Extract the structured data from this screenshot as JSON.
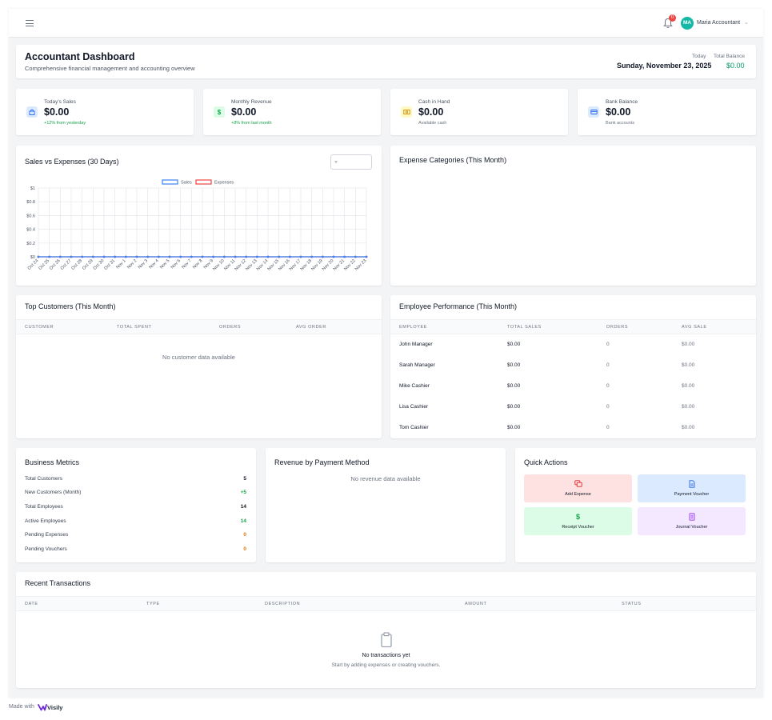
{
  "topbar": {
    "notification_count": "0",
    "avatar_initials": "MA",
    "user_name": "Maria Accountant"
  },
  "header": {
    "title": "Accountant Dashboard",
    "subtitle": "Comprehensive financial management and accounting overview",
    "today_label": "Today",
    "today_date": "Sunday, November 23, 2025",
    "total_balance_label": "Total Balance",
    "total_balance_value": "$0.00"
  },
  "stats": [
    {
      "label": "Today's Sales",
      "value": "$0.00",
      "note": "+12% from yesterday",
      "icon": "shopping-bag-icon",
      "color": "#2563eb"
    },
    {
      "label": "Monthly Revenue",
      "value": "$0.00",
      "note": "+8% from last month",
      "icon": "dollar-icon",
      "color": "#16a34a"
    },
    {
      "label": "Cash in Hand",
      "value": "$0.00",
      "note": "Available cash",
      "icon": "cash-icon",
      "color": "#ca8a04"
    },
    {
      "label": "Bank Balance",
      "value": "$0.00",
      "note": "Bank accounts",
      "icon": "bank-icon",
      "color": "#2563eb"
    }
  ],
  "sales_chart": {
    "title": "Sales vs Expenses (30 Days)",
    "select_value": ""
  },
  "chart_data": {
    "type": "line",
    "x": [
      "Oct 24",
      "Oct 25",
      "Oct 26",
      "Oct 27",
      "Oct 28",
      "Oct 29",
      "Oct 30",
      "Oct 31",
      "Nov 1",
      "Nov 2",
      "Nov 3",
      "Nov 4",
      "Nov 5",
      "Nov 6",
      "Nov 7",
      "Nov 8",
      "Nov 9",
      "Nov 10",
      "Nov 11",
      "Nov 12",
      "Nov 13",
      "Nov 14",
      "Nov 15",
      "Nov 16",
      "Nov 17",
      "Nov 18",
      "Nov 19",
      "Nov 20",
      "Nov 21",
      "Nov 22",
      "Nov 23"
    ],
    "series": [
      {
        "name": "Sales",
        "color": "#3b82f6",
        "values": [
          0,
          0,
          0,
          0,
          0,
          0,
          0,
          0,
          0,
          0,
          0,
          0,
          0,
          0,
          0,
          0,
          0,
          0,
          0,
          0,
          0,
          0,
          0,
          0,
          0,
          0,
          0,
          0,
          0,
          0,
          0
        ]
      },
      {
        "name": "Expenses",
        "color": "#ef4444",
        "values": [
          0,
          0,
          0,
          0,
          0,
          0,
          0,
          0,
          0,
          0,
          0,
          0,
          0,
          0,
          0,
          0,
          0,
          0,
          0,
          0,
          0,
          0,
          0,
          0,
          0,
          0,
          0,
          0,
          0,
          0,
          0
        ]
      }
    ],
    "y_ticks": [
      "$0",
      "$0.2",
      "$0.4",
      "$0.6",
      "$0.8",
      "$1"
    ],
    "ylim": [
      0,
      1
    ],
    "legend": "top-center",
    "grid": true
  },
  "expense_categories": {
    "title": "Expense Categories (This Month)"
  },
  "top_customers": {
    "title": "Top Customers (This Month)",
    "columns": [
      "Customer",
      "Total Spent",
      "Orders",
      "Avg Order"
    ],
    "empty_text": "No customer data available"
  },
  "employee_performance": {
    "title": "Employee Performance (This Month)",
    "columns": [
      "Employee",
      "Total Sales",
      "Orders",
      "Avg Sale"
    ],
    "rows": [
      {
        "employee": "John Manager",
        "total_sales": "$0.00",
        "orders": "0",
        "avg_sale": "$0.00"
      },
      {
        "employee": "Sarah Manager",
        "total_sales": "$0.00",
        "orders": "0",
        "avg_sale": "$0.00"
      },
      {
        "employee": "Mike Cashier",
        "total_sales": "$0.00",
        "orders": "0",
        "avg_sale": "$0.00"
      },
      {
        "employee": "Lisa Cashier",
        "total_sales": "$0.00",
        "orders": "0",
        "avg_sale": "$0.00"
      },
      {
        "employee": "Tom Cashier",
        "total_sales": "$0.00",
        "orders": "0",
        "avg_sale": "$0.00"
      }
    ]
  },
  "business_metrics": {
    "title": "Business Metrics",
    "items": [
      {
        "label": "Total Customers",
        "value": "5",
        "color": "#111827"
      },
      {
        "label": "New Customers (Month)",
        "value": "+5",
        "color": "#16a34a"
      },
      {
        "label": "Total Employees",
        "value": "14",
        "color": "#111827"
      },
      {
        "label": "Active Employees",
        "value": "14",
        "color": "#16a34a"
      },
      {
        "label": "Pending Expenses",
        "value": "0",
        "color": "#d97706"
      },
      {
        "label": "Pending Vouchers",
        "value": "0",
        "color": "#d97706"
      }
    ]
  },
  "revenue_by_payment": {
    "title": "Revenue by Payment Method",
    "empty_text": "No revenue data available"
  },
  "quick_actions": {
    "title": "Quick Actions",
    "items": [
      {
        "label": "Add Expense",
        "icon": "expense-icon",
        "bg": "#fee2e2",
        "color": "#dc2626"
      },
      {
        "label": "Payment Voucher",
        "icon": "document-icon",
        "bg": "#dbeafe",
        "color": "#2563eb"
      },
      {
        "label": "Receipt Voucher",
        "icon": "dollar-icon",
        "bg": "#dcfce7",
        "color": "#16a34a"
      },
      {
        "label": "Journal Voucher",
        "icon": "journal-icon",
        "bg": "#f3e8ff",
        "color": "#9333ea"
      }
    ]
  },
  "recent_transactions": {
    "title": "Recent Transactions",
    "columns": [
      "Date",
      "Type",
      "Description",
      "Amount",
      "Status"
    ],
    "empty_title": "No transactions yet",
    "empty_subtitle": "Start by adding expenses or creating vouchers."
  },
  "footer": {
    "made_with": "Made with",
    "brand": "Visily"
  }
}
